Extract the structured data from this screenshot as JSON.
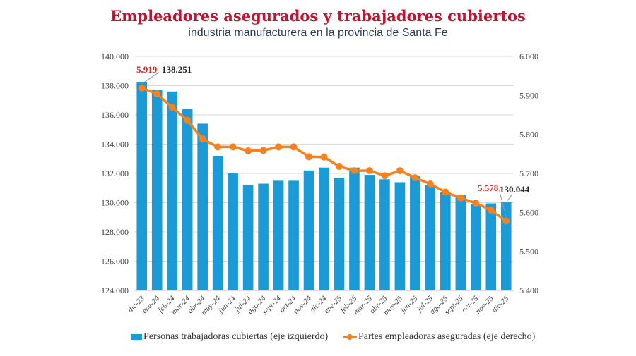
{
  "chart_data": {
    "type": "bar+line",
    "title": "Empleadores asegurados y trabajadores cubiertos",
    "subtitle": "industria manufacturera en la provincia de Santa Fe",
    "categories": [
      "dic-23",
      "ene-24",
      "feb-24",
      "mar-24",
      "abr-24",
      "may-24",
      "jun-24",
      "jul-24",
      "ago-24",
      "sept-24",
      "oct-24",
      "nov-24",
      "dic-24",
      "ene-25",
      "feb-25",
      "mar-25",
      "abr-25",
      "may-25",
      "jun-25",
      "jul-25",
      "ago-25",
      "sept-25",
      "oct-25",
      "nov-25",
      "dic-25"
    ],
    "left_axis": {
      "ylim": [
        124000,
        140000
      ],
      "ticks": [
        "124.000",
        "126.000",
        "128.000",
        "130.000",
        "132.000",
        "134.000",
        "136.000",
        "138.000",
        "140.000"
      ]
    },
    "right_axis": {
      "ylim": [
        5400,
        6000
      ],
      "ticks": [
        "5.400",
        "5.500",
        "5.600",
        "5.700",
        "5.800",
        "5.900",
        "6.000"
      ]
    },
    "grid": true,
    "legend_position": "bottom",
    "series": [
      {
        "name": "Personas trabajadoras cubiertas (eje izquierdo)",
        "type": "bar",
        "axis": "left",
        "color": "#1a9ad6",
        "values": [
          138251,
          137700,
          137600,
          136400,
          135400,
          133200,
          132000,
          131200,
          131300,
          131500,
          131500,
          132200,
          132400,
          131700,
          132400,
          131900,
          131600,
          131400,
          131800,
          131200,
          130700,
          130500,
          129900,
          129950,
          130044
        ]
      },
      {
        "name": "Partes empleadoras aseguradas (eje derecho)",
        "type": "line",
        "axis": "right",
        "color": "#f58220",
        "values": [
          5919,
          5904,
          5869,
          5836,
          5788,
          5768,
          5768,
          5758,
          5759,
          5768,
          5768,
          5743,
          5742,
          5718,
          5707,
          5707,
          5694,
          5707,
          5689,
          5673,
          5652,
          5637,
          5624,
          5606,
          5578
        ]
      }
    ],
    "annotations": {
      "first_line_label": "5.919",
      "first_bar_label": "138.251",
      "last_line_label": "5.578",
      "last_bar_label": "130.044",
      "line_label_color": "#e0201b"
    }
  }
}
